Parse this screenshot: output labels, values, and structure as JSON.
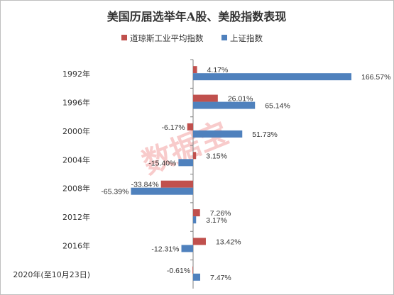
{
  "chart_data": {
    "type": "bar",
    "orientation": "horizontal",
    "title": "美国历届选举年A股、美股指数表现",
    "categories": [
      "1992年",
      "1996年",
      "2000年",
      "2004年",
      "2008年",
      "2012年",
      "2016年",
      "2020年(至10月23日)"
    ],
    "series": [
      {
        "name": "道琼斯工业平均指数",
        "color": "#c0504d",
        "values": [
          4.17,
          26.01,
          -6.17,
          3.15,
          -33.84,
          7.26,
          13.42,
          -0.61
        ],
        "labels": [
          "4.17%",
          "26.01%",
          "-6.17%",
          "3.15%",
          "-33.84%",
          "7.26%",
          "13.42%",
          "-0.61%"
        ]
      },
      {
        "name": "上证指数",
        "color": "#4f81bd",
        "values": [
          166.57,
          65.14,
          51.73,
          -15.4,
          -65.39,
          3.17,
          -12.31,
          7.47
        ],
        "labels": [
          "166.57%",
          "65.14%",
          "51.73%",
          "-15.40%",
          "-65.39%",
          "3.17%",
          "-12.31%",
          "7.47%"
        ]
      }
    ],
    "xlim": [
      -90,
      170
    ],
    "grid": false,
    "legend_position": "top",
    "watermark": "数据宝",
    "watermark_color": "#f08c8c"
  }
}
